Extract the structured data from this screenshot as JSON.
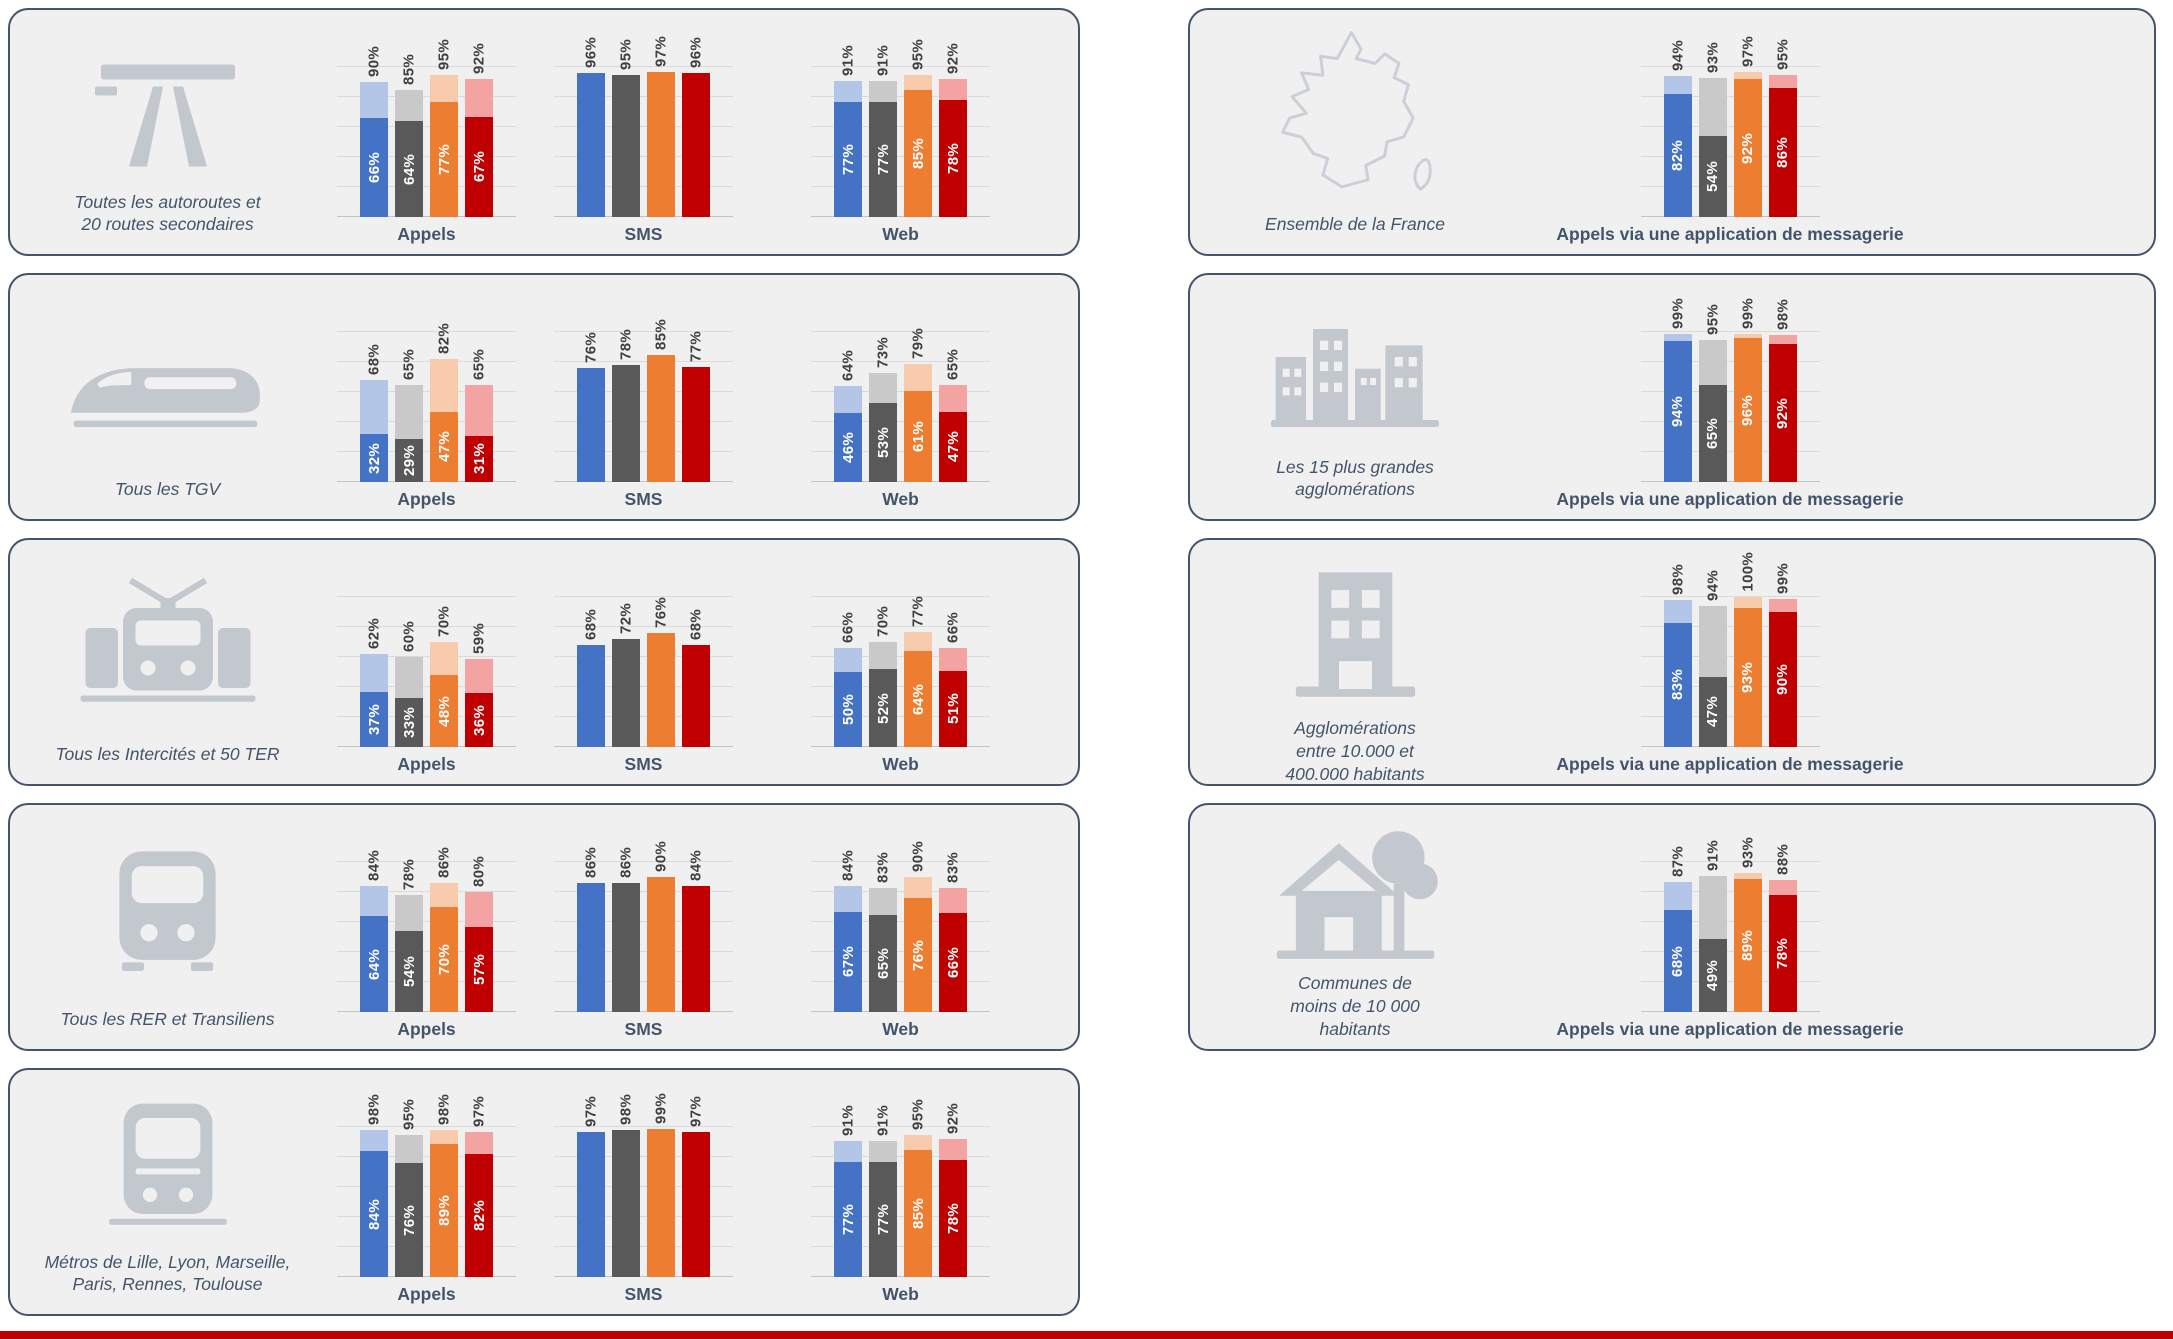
{
  "page": {
    "bottom_bar_color": "#C00000",
    "background": "#FFFFFF"
  },
  "colors": {
    "panel_bg": "#F0F0F1",
    "panel_border": "#44546A",
    "gridline": "#DADADA",
    "top_label_text": "#3F3F3F",
    "caption_text": "#44546A",
    "icon_gray": "#C3C7CE",
    "series": [
      {
        "name": "blue",
        "solid": "#4472C4",
        "light": "#B4C6E7"
      },
      {
        "name": "gray",
        "solid": "#595959",
        "light": "#C9C9C9"
      },
      {
        "name": "orange",
        "solid": "#ED7D31",
        "light": "#F8CBAD"
      },
      {
        "name": "red",
        "solid": "#C00000",
        "light": "#F4A3A3"
      }
    ]
  },
  "chart_data": {
    "type": "bar",
    "unit": "%",
    "ylim": [
      0,
      100
    ],
    "grid": true,
    "note": "Each group has 4 operator bars (blue/gray/orange/red). 'totals' = light outer value labeled above bar; 'inners' = solid inner value labeled in white inside bar; groups without 'inners' are single solid bars.",
    "left_panels": [
      {
        "icon": "highway-icon",
        "label": "Toutes les autoroutes et\n20 routes secondaires",
        "groups": [
          {
            "caption": "Appels",
            "totals": [
              90,
              85,
              95,
              92
            ],
            "inners": [
              66,
              64,
              77,
              67
            ]
          },
          {
            "caption": "SMS",
            "totals": [
              96,
              95,
              97,
              96
            ]
          },
          {
            "caption": "Web",
            "totals": [
              91,
              91,
              95,
              92
            ],
            "inners": [
              77,
              77,
              85,
              78
            ]
          }
        ]
      },
      {
        "icon": "tgv-icon",
        "label": "Tous les TGV",
        "groups": [
          {
            "caption": "Appels",
            "totals": [
              68,
              65,
              82,
              65
            ],
            "inners": [
              32,
              29,
              47,
              31
            ]
          },
          {
            "caption": "SMS",
            "totals": [
              76,
              78,
              85,
              77
            ]
          },
          {
            "caption": "Web",
            "totals": [
              64,
              73,
              79,
              65
            ],
            "inners": [
              46,
              53,
              61,
              47
            ]
          }
        ]
      },
      {
        "icon": "intercites-icon",
        "label": "Tous les Intercités et 50 TER",
        "groups": [
          {
            "caption": "Appels",
            "totals": [
              62,
              60,
              70,
              59
            ],
            "inners": [
              37,
              33,
              48,
              36
            ]
          },
          {
            "caption": "SMS",
            "totals": [
              68,
              72,
              76,
              68
            ]
          },
          {
            "caption": "Web",
            "totals": [
              66,
              70,
              77,
              66
            ],
            "inners": [
              50,
              52,
              64,
              51
            ]
          }
        ]
      },
      {
        "icon": "rer-icon",
        "label": "Tous les RER et Transiliens",
        "groups": [
          {
            "caption": "Appels",
            "totals": [
              84,
              78,
              86,
              80
            ],
            "inners": [
              64,
              54,
              70,
              57
            ]
          },
          {
            "caption": "SMS",
            "totals": [
              86,
              86,
              90,
              84
            ]
          },
          {
            "caption": "Web",
            "totals": [
              84,
              83,
              90,
              83
            ],
            "inners": [
              67,
              65,
              76,
              66
            ]
          }
        ]
      },
      {
        "icon": "metro-icon",
        "label": "Métros de Lille, Lyon, Marseille,\nParis, Rennes, Toulouse",
        "groups": [
          {
            "caption": "Appels",
            "totals": [
              98,
              95,
              98,
              97
            ],
            "inners": [
              84,
              76,
              89,
              82
            ]
          },
          {
            "caption": "SMS",
            "totals": [
              97,
              98,
              99,
              97
            ]
          },
          {
            "caption": "Web",
            "totals": [
              91,
              91,
              95,
              92
            ],
            "inners": [
              77,
              77,
              85,
              78
            ]
          }
        ]
      }
    ],
    "right_panels": [
      {
        "icon": "france-map-icon",
        "label": "Ensemble de la France",
        "groups": [
          {
            "caption": "Appels via une application de messagerie",
            "totals": [
              94,
              93,
              97,
              95
            ],
            "inners": [
              82,
              54,
              92,
              86
            ]
          }
        ]
      },
      {
        "icon": "city-icon",
        "label": "Les 15 plus grandes\nagglomérations",
        "groups": [
          {
            "caption": "Appels via une application de messagerie",
            "totals": [
              99,
              95,
              99,
              98
            ],
            "inners": [
              94,
              65,
              96,
              92
            ]
          }
        ]
      },
      {
        "icon": "building-icon",
        "label": "Agglomérations\nentre 10.000 et\n400.000 habitants",
        "groups": [
          {
            "caption": "Appels via une application de messagerie",
            "totals": [
              98,
              94,
              100,
              99
            ],
            "inners": [
              83,
              47,
              93,
              90
            ]
          }
        ]
      },
      {
        "icon": "house-tree-icon",
        "label": "Communes de\nmoins de 10 000\nhabitants",
        "groups": [
          {
            "caption": "Appels via une application de messagerie",
            "totals": [
              87,
              91,
              93,
              88
            ],
            "inners": [
              68,
              49,
              89,
              78
            ]
          }
        ]
      }
    ]
  }
}
